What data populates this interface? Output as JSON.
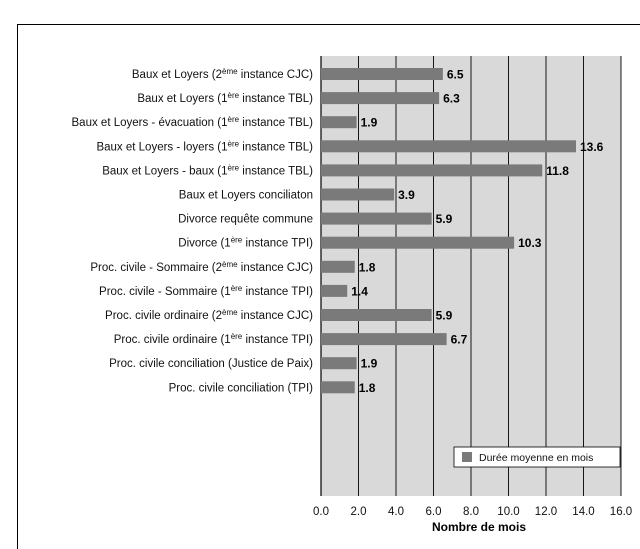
{
  "chart_data": {
    "type": "bar",
    "orientation": "horizontal",
    "title": "",
    "xlabel": "Nombre de mois",
    "ylabel": "",
    "xlim": [
      0,
      16
    ],
    "x_ticks": [
      "0.0",
      "2.0",
      "4.0",
      "6.0",
      "8.0",
      "10.0",
      "12.0",
      "14.0",
      "16.0"
    ],
    "grid": true,
    "legend_position": "bottom-right",
    "series_color": "#7a7a7a",
    "plot_background": "#d9d9d9",
    "categories": [
      {
        "pre": "Baux et Loyers (2",
        "sup": "ème",
        "post": " instance CJC)"
      },
      {
        "pre": "Baux et Loyers (1",
        "sup": "ère",
        "post": " instance TBL)"
      },
      {
        "pre": "Baux et Loyers - évacuation (1",
        "sup": "ère",
        "post": " instance TBL)"
      },
      {
        "pre": "Baux et Loyers - loyers (1",
        "sup": "ère",
        "post": " instance TBL)"
      },
      {
        "pre": "Baux et Loyers - baux (1",
        "sup": "ère",
        "post": " instance TBL)"
      },
      {
        "pre": "Baux et Loyers conciliaton",
        "sup": "",
        "post": ""
      },
      {
        "pre": "Divorce requête commune",
        "sup": "",
        "post": ""
      },
      {
        "pre": "Divorce (1",
        "sup": "ère",
        "post": " instance TPI)"
      },
      {
        "pre": "Proc. civile - Sommaire (2",
        "sup": "ème",
        "post": " instance CJC)"
      },
      {
        "pre": "Proc. civile - Sommaire (1",
        "sup": "ère",
        "post": " instance TPI)"
      },
      {
        "pre": "Proc. civile ordinaire (2",
        "sup": "ème",
        "post": " instance CJC)"
      },
      {
        "pre": "Proc. civile ordinaire (1",
        "sup": "ère",
        "post": " instance TPI)"
      },
      {
        "pre": "Proc. civile conciliation (Justice de Paix)",
        "sup": "",
        "post": ""
      },
      {
        "pre": "Proc. civile conciliation (TPI)",
        "sup": "",
        "post": ""
      }
    ],
    "series": [
      {
        "name": "Durée moyenne en mois",
        "values": [
          6.5,
          6.3,
          1.9,
          13.6,
          11.8,
          3.9,
          5.9,
          10.3,
          1.8,
          1.4,
          5.9,
          6.7,
          1.9,
          1.8
        ],
        "labels": [
          "6.5",
          "6.3",
          "1.9",
          "13.6",
          "11.8",
          "3.9",
          "5.9",
          "10.3",
          "1.8",
          "1.4",
          "5.9",
          "6.7",
          "1.9",
          "1.8"
        ]
      }
    ]
  }
}
